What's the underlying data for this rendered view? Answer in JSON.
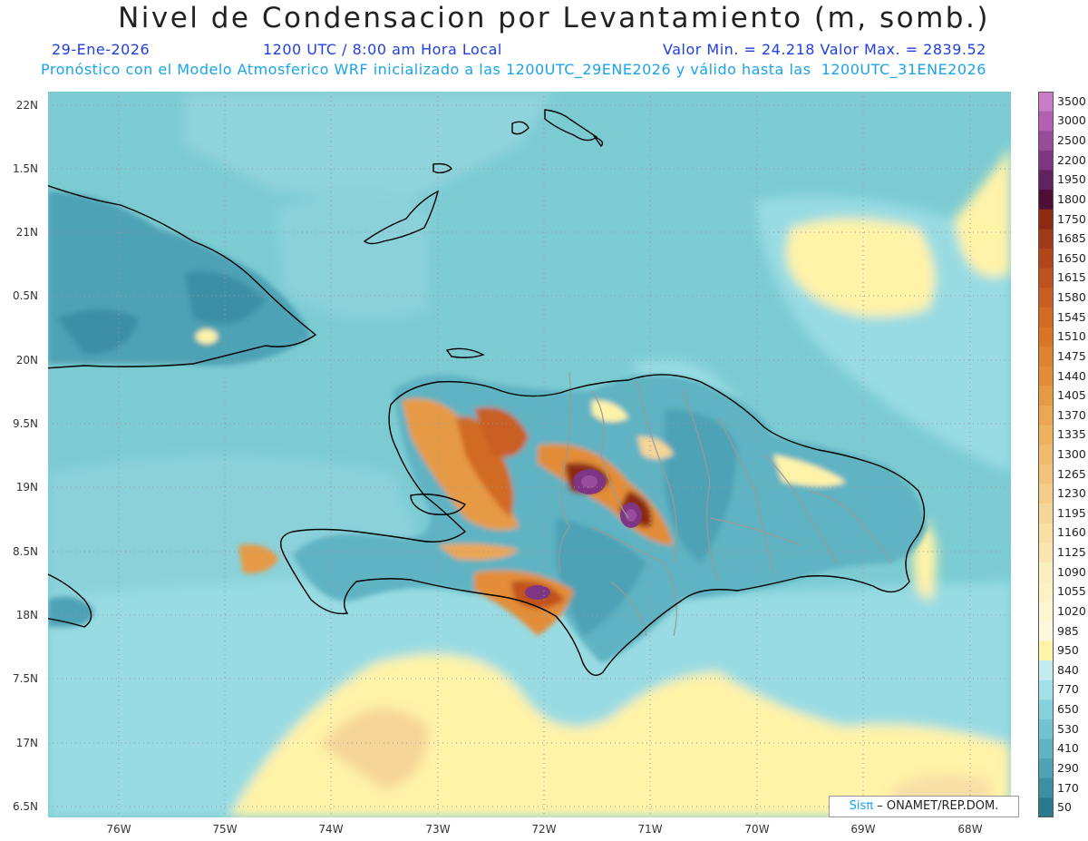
{
  "header": {
    "title": "Nivel de Condensacion por Levantamiento (m, somb.)",
    "date": "29-Ene-2026",
    "time": "1200 UTC / 8:00 am Hora Local",
    "min_max": "Valor Min. = 24.218  Valor Max. = 2839.52",
    "model_line": "Pronóstico con el Modelo Atmosferico WRF inicializado a las 1200UTC_29ENE2026 y válido hasta las  1200UTC_31ENE2026"
  },
  "map": {
    "lat_labels": [
      "22N",
      "1.5N",
      "21N",
      "0.5N",
      "20N",
      "9.5N",
      "19N",
      "8.5N",
      "18N",
      "7.5N",
      "17N",
      "6.5N"
    ],
    "lon_labels": [
      "76W",
      "75W",
      "74W",
      "73W",
      "72W",
      "71W",
      "70W",
      "69W",
      "68W"
    ],
    "background_color": "#7ccbd3",
    "coastline_color": "#000000",
    "province_border_color": "#9a9a9a"
  },
  "colorbar": {
    "labels": [
      "3500",
      "3000",
      "2500",
      "2200",
      "1950",
      "1800",
      "1750",
      "1685",
      "1650",
      "1615",
      "1580",
      "1545",
      "1510",
      "1475",
      "1440",
      "1405",
      "1370",
      "1335",
      "1300",
      "1265",
      "1230",
      "1195",
      "1160",
      "1125",
      "1090",
      "1055",
      "1020",
      "985",
      "950",
      "840",
      "770",
      "650",
      "530",
      "410",
      "290",
      "170",
      "50"
    ],
    "colors": [
      "#c97cc8",
      "#b35fb3",
      "#9a4c9c",
      "#7d3584",
      "#62215f",
      "#4f0e36",
      "#8c2a12",
      "#a0381a",
      "#b0461c",
      "#c0521f",
      "#c95e22",
      "#d16a24",
      "#d87527",
      "#dd8230",
      "#e38d39",
      "#e79a45",
      "#eba652",
      "#eeb15f",
      "#f0bb6d",
      "#f2c47b",
      "#f4cd8a",
      "#f6d698",
      "#f8dfa6",
      "#f9e6b2",
      "#fbeebf",
      "#fcf2c8",
      "#fdf6d2",
      "#fef9dc",
      "#fff3a8",
      "#c4ecf0",
      "#a3e0e7",
      "#86d1dc",
      "#72c3cf",
      "#5fb3c2",
      "#4ea2b5",
      "#3e8fa5",
      "#2a7990"
    ]
  },
  "credit": {
    "brand": "Sisπ",
    "text": "– ONAMET/REP.DOM."
  }
}
